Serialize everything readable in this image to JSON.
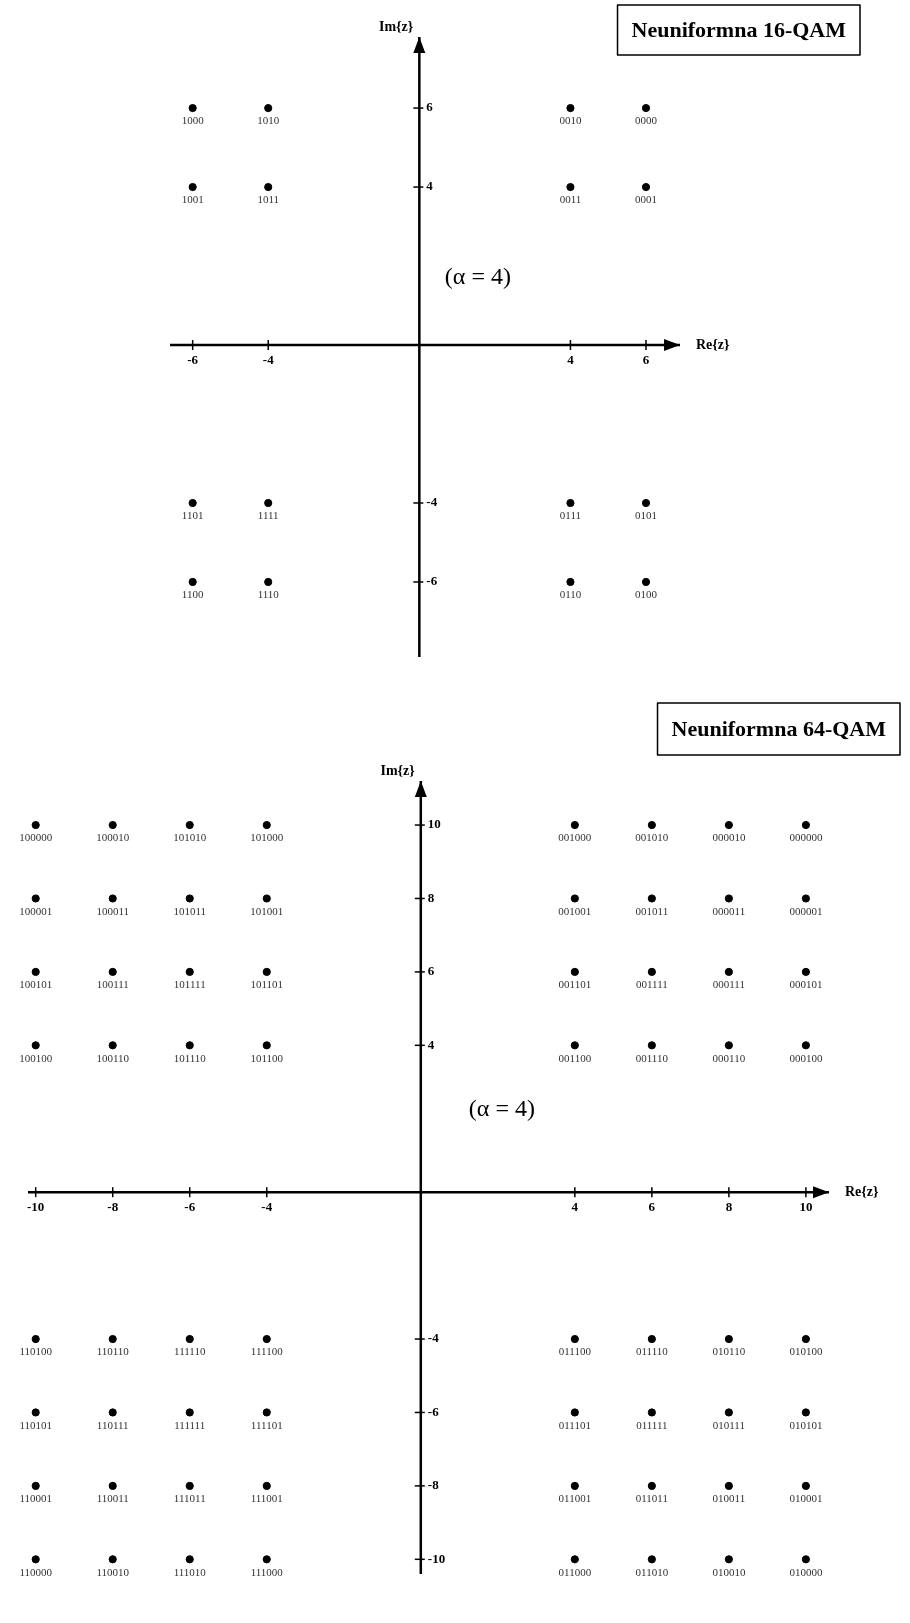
{
  "chart_data": [
    {
      "type": "scatter",
      "title": "Neuniformna 16-QAM",
      "xlabel": "Re{z}",
      "ylabel": "Im{z}",
      "marker": "circle",
      "grid": false,
      "annotations": [
        "(α = 4)",
        {
          "text": "1000",
          "x": -6,
          "y": 6
        },
        {
          "text": "1010",
          "x": -4,
          "y": 6
        },
        {
          "text": "0010",
          "x": 4,
          "y": 6
        },
        {
          "text": "0000",
          "x": 6,
          "y": 6
        },
        {
          "text": "1001",
          "x": -6,
          "y": 4
        },
        {
          "text": "1011",
          "x": -4,
          "y": 4
        },
        {
          "text": "0011",
          "x": 4,
          "y": 4
        },
        {
          "text": "0001",
          "x": 6,
          "y": 4
        },
        {
          "text": "1101",
          "x": -6,
          "y": -4
        },
        {
          "text": "1111",
          "x": -4,
          "y": -4
        },
        {
          "text": "0111",
          "x": 4,
          "y": -4
        },
        {
          "text": "0101",
          "x": 6,
          "y": -4
        },
        {
          "text": "1100",
          "x": -6,
          "y": -6
        },
        {
          "text": "1110",
          "x": -4,
          "y": -6
        },
        {
          "text": "0110",
          "x": 4,
          "y": -6
        },
        {
          "text": "0100",
          "x": 6,
          "y": -6
        }
      ],
      "series": [
        {
          "color": "#000000",
          "x": [
            -6,
            -4,
            4,
            6,
            -6,
            -4,
            4,
            6,
            -6,
            -4,
            4,
            6,
            -6,
            -4,
            4,
            6
          ],
          "values": [
            6,
            6,
            6,
            6,
            4,
            4,
            4,
            4,
            -4,
            -4,
            -4,
            -4,
            -6,
            -6,
            -6,
            -6
          ]
        }
      ],
      "xlim": [
        -6.6,
        6.9
      ],
      "ylim": [
        -7.9,
        7.8
      ],
      "xticks": [
        -6,
        -4,
        4,
        6
      ],
      "yticks": [
        -6,
        -4,
        4,
        6
      ]
    },
    {
      "type": "scatter",
      "title": "Neuniformna 64-QAM",
      "xlabel": "Re{z}",
      "ylabel": "Im{z}",
      "marker": "circle",
      "grid": false,
      "annotations": [
        "(α = 4)",
        {
          "text": "100000",
          "x": -10,
          "y": 10
        },
        {
          "text": "100010",
          "x": -8,
          "y": 10
        },
        {
          "text": "101010",
          "x": -6,
          "y": 10
        },
        {
          "text": "101000",
          "x": -4,
          "y": 10
        },
        {
          "text": "001000",
          "x": 4,
          "y": 10
        },
        {
          "text": "001010",
          "x": 6,
          "y": 10
        },
        {
          "text": "000010",
          "x": 8,
          "y": 10
        },
        {
          "text": "000000",
          "x": 10,
          "y": 10
        },
        {
          "text": "100001",
          "x": -10,
          "y": 8
        },
        {
          "text": "100011",
          "x": -8,
          "y": 8
        },
        {
          "text": "101011",
          "x": -6,
          "y": 8
        },
        {
          "text": "101001",
          "x": -4,
          "y": 8
        },
        {
          "text": "001001",
          "x": 4,
          "y": 8
        },
        {
          "text": "001011",
          "x": 6,
          "y": 8
        },
        {
          "text": "000011",
          "x": 8,
          "y": 8
        },
        {
          "text": "000001",
          "x": 10,
          "y": 8
        },
        {
          "text": "100101",
          "x": -10,
          "y": 6
        },
        {
          "text": "100111",
          "x": -8,
          "y": 6
        },
        {
          "text": "101111",
          "x": -6,
          "y": 6
        },
        {
          "text": "101101",
          "x": -4,
          "y": 6
        },
        {
          "text": "001101",
          "x": 4,
          "y": 6
        },
        {
          "text": "001111",
          "x": 6,
          "y": 6
        },
        {
          "text": "000111",
          "x": 8,
          "y": 6
        },
        {
          "text": "000101",
          "x": 10,
          "y": 6
        },
        {
          "text": "100100",
          "x": -10,
          "y": 4
        },
        {
          "text": "100110",
          "x": -8,
          "y": 4
        },
        {
          "text": "101110",
          "x": -6,
          "y": 4
        },
        {
          "text": "101100",
          "x": -4,
          "y": 4
        },
        {
          "text": "001100",
          "x": 4,
          "y": 4
        },
        {
          "text": "001110",
          "x": 6,
          "y": 4
        },
        {
          "text": "000110",
          "x": 8,
          "y": 4
        },
        {
          "text": "000100",
          "x": 10,
          "y": 4
        },
        {
          "text": "110100",
          "x": -10,
          "y": -4
        },
        {
          "text": "110110",
          "x": -8,
          "y": -4
        },
        {
          "text": "111110",
          "x": -6,
          "y": -4
        },
        {
          "text": "111100",
          "x": -4,
          "y": -4
        },
        {
          "text": "011100",
          "x": 4,
          "y": -4
        },
        {
          "text": "011110",
          "x": 6,
          "y": -4
        },
        {
          "text": "010110",
          "x": 8,
          "y": -4
        },
        {
          "text": "010100",
          "x": 10,
          "y": -4
        },
        {
          "text": "110101",
          "x": -10,
          "y": -6
        },
        {
          "text": "110111",
          "x": -8,
          "y": -6
        },
        {
          "text": "111111",
          "x": -6,
          "y": -6
        },
        {
          "text": "111101",
          "x": -4,
          "y": -6
        },
        {
          "text": "011101",
          "x": 4,
          "y": -6
        },
        {
          "text": "011111",
          "x": 6,
          "y": -6
        },
        {
          "text": "010111",
          "x": 8,
          "y": -6
        },
        {
          "text": "010101",
          "x": 10,
          "y": -6
        },
        {
          "text": "110001",
          "x": -10,
          "y": -8
        },
        {
          "text": "110011",
          "x": -8,
          "y": -8
        },
        {
          "text": "111011",
          "x": -6,
          "y": -8
        },
        {
          "text": "111001",
          "x": -4,
          "y": -8
        },
        {
          "text": "011001",
          "x": 4,
          "y": -8
        },
        {
          "text": "011011",
          "x": 6,
          "y": -8
        },
        {
          "text": "010011",
          "x": 8,
          "y": -8
        },
        {
          "text": "010001",
          "x": 10,
          "y": -8
        },
        {
          "text": "110000",
          "x": -10,
          "y": -10
        },
        {
          "text": "110010",
          "x": -8,
          "y": -10
        },
        {
          "text": "111010",
          "x": -6,
          "y": -10
        },
        {
          "text": "111000",
          "x": -4,
          "y": -10
        },
        {
          "text": "011000",
          "x": 4,
          "y": -10
        },
        {
          "text": "011010",
          "x": 6,
          "y": -10
        },
        {
          "text": "010010",
          "x": 8,
          "y": -10
        },
        {
          "text": "010000",
          "x": 10,
          "y": -10
        }
      ],
      "series": [
        {
          "color": "#000000",
          "x": [
            -10,
            -8,
            -6,
            -4,
            4,
            6,
            8,
            10,
            -10,
            -8,
            -6,
            -4,
            4,
            6,
            8,
            10,
            -10,
            -8,
            -6,
            -4,
            4,
            6,
            8,
            10,
            -10,
            -8,
            -6,
            -4,
            4,
            6,
            8,
            10,
            -10,
            -8,
            -6,
            -4,
            4,
            6,
            8,
            10,
            -10,
            -8,
            -6,
            -4,
            4,
            6,
            8,
            10,
            -10,
            -8,
            -6,
            -4,
            4,
            6,
            8,
            10,
            -10,
            -8,
            -6,
            -4,
            4,
            6,
            8,
            10
          ],
          "values": [
            10,
            10,
            10,
            10,
            10,
            10,
            10,
            10,
            8,
            8,
            8,
            8,
            8,
            8,
            8,
            8,
            6,
            6,
            6,
            6,
            6,
            6,
            6,
            6,
            4,
            4,
            4,
            4,
            4,
            4,
            4,
            4,
            -4,
            -4,
            -4,
            -4,
            -4,
            -4,
            -4,
            -4,
            -6,
            -6,
            -6,
            -6,
            -6,
            -6,
            -6,
            -6,
            -8,
            -8,
            -8,
            -8,
            -8,
            -8,
            -8,
            -8,
            -10,
            -10,
            -10,
            -10,
            -10,
            -10,
            -10,
            -10
          ]
        }
      ],
      "xlim": [
        -10.2,
        10.6
      ],
      "ylim": [
        -10.4,
        11.2
      ],
      "xticks": [
        -10,
        -8,
        -6,
        -4,
        4,
        6,
        8,
        10
      ],
      "yticks": [
        -10,
        -8,
        -6,
        -4,
        4,
        6,
        8,
        10
      ]
    }
  ]
}
